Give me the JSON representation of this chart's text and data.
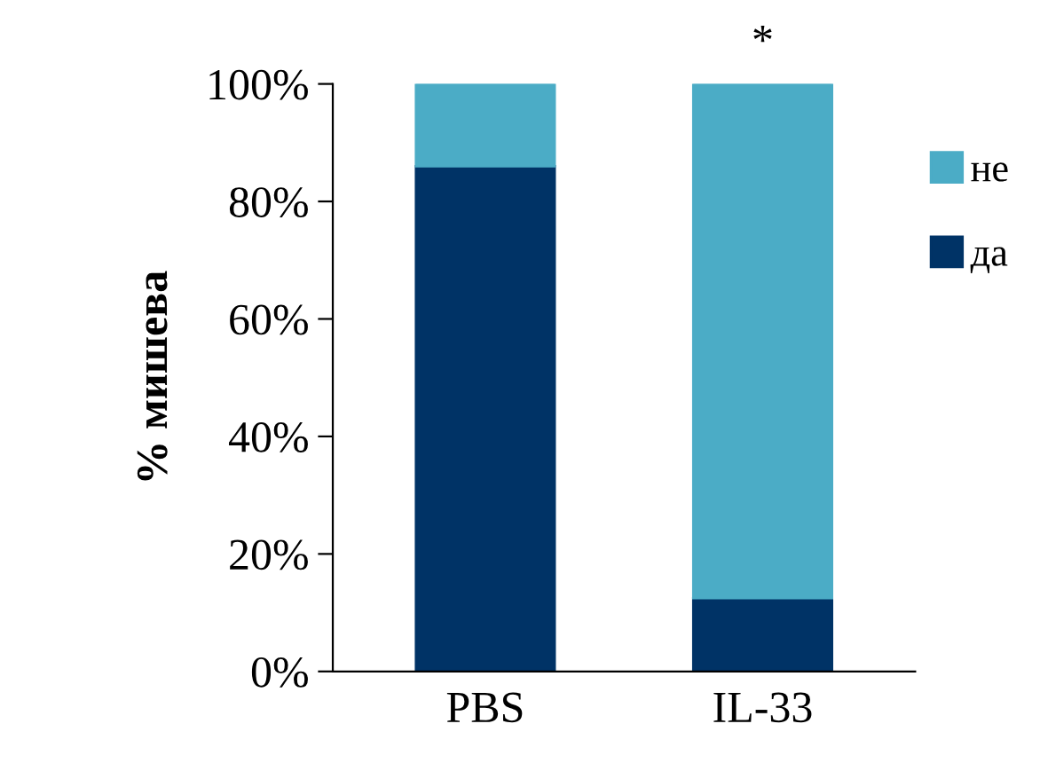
{
  "chart_data": {
    "type": "bar",
    "stacked": true,
    "ylabel": "% мишева",
    "categories": [
      "PBS",
      "IL-33"
    ],
    "series": [
      {
        "name": "да",
        "color": "#003366",
        "values": [
          86,
          12.5
        ]
      },
      {
        "name": "не",
        "color": "#4bacc6",
        "values": [
          14,
          87.5
        ]
      }
    ],
    "ylim": [
      0,
      100
    ],
    "yticks": [
      {
        "value": 0,
        "label": "0%"
      },
      {
        "value": 20,
        "label": "20%"
      },
      {
        "value": 40,
        "label": "40%"
      },
      {
        "value": 60,
        "label": "60%"
      },
      {
        "value": 80,
        "label": "80%"
      },
      {
        "value": 100,
        "label": "100%"
      }
    ],
    "annotations": [
      {
        "text": "*",
        "x": "IL-33",
        "y": 100
      }
    ],
    "legend": "right",
    "grid": false
  }
}
